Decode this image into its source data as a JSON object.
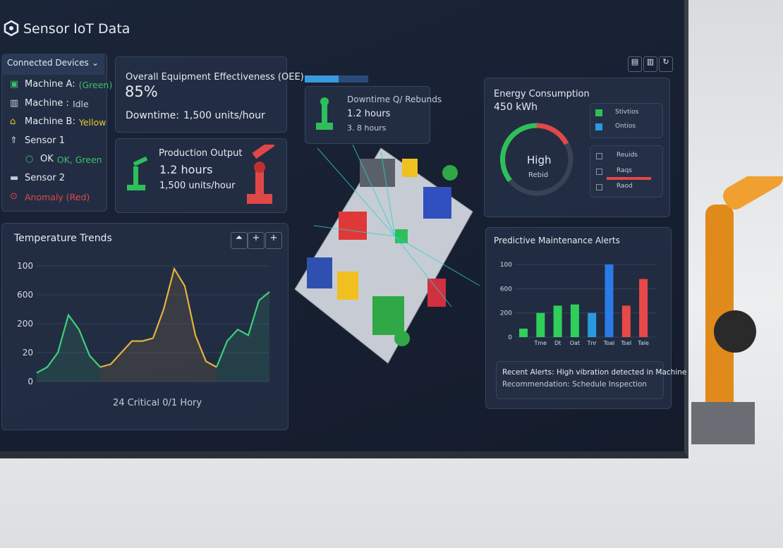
{
  "header": {
    "title": "Sensor IoT Data"
  },
  "devices": {
    "title": "Connected Devices",
    "items": [
      {
        "label": "Machine A:",
        "status": "(Green)",
        "color": "#3fbf6a"
      },
      {
        "label": "Machine :",
        "status": "Idle",
        "color": "#c8d0dc"
      },
      {
        "label": "Machine B:",
        "status": "Yellow",
        "color": "#e8c830"
      },
      {
        "label": "Sensor 1"
      },
      {
        "label": "OK",
        "status": "OK, Green",
        "color": "#3fbf6a"
      },
      {
        "label": "Sensor 2"
      },
      {
        "status": "Anomaly (Red)",
        "color": "#e04848"
      }
    ]
  },
  "oee": {
    "title": "Overall Equipment Effectiveness (OEE)",
    "value": "85%",
    "downtime_label": "Downtime:",
    "downtime_value": "1,500 units/hour"
  },
  "production": {
    "title": "Production Output",
    "hours": "1.2 hours",
    "rate": "1,500 units/hour"
  },
  "downtime": {
    "title": "Downtime Q/ Rebunds",
    "hours": "1.2 hours",
    "alt": "3. 8 hours"
  },
  "energy": {
    "title": "Energy Consumption",
    "value": "450 kWh",
    "gauge_label": "High",
    "gauge_sub": "Rebid",
    "legend": [
      {
        "label": "Stivtios",
        "color": "#2fbf5a"
      },
      {
        "label": "Ontios",
        "color": "#2a9ae0"
      }
    ],
    "list": [
      "Reuids",
      "Raqs",
      "Raod"
    ]
  },
  "temperature": {
    "title": "Temperature Trends",
    "y_labels": [
      "100",
      "600",
      "200",
      "20",
      "0"
    ],
    "ylim": [
      0,
      4
    ],
    "series": [
      {
        "color": "#3fcf7a",
        "values": [
          0.3,
          0.5,
          1.0,
          2.3,
          1.8,
          0.9,
          0.5,
          null,
          null,
          null,
          null,
          null,
          null,
          null,
          null,
          null,
          null,
          0.5,
          1.4,
          1.8,
          1.6,
          2.8,
          3.1
        ]
      },
      {
        "color": "#e8b040",
        "values": [
          null,
          null,
          null,
          null,
          null,
          null,
          0.5,
          0.6,
          1.0,
          1.4,
          1.4,
          1.5,
          2.5,
          3.9,
          3.3,
          1.6,
          0.7,
          0.5,
          null,
          null,
          null,
          null,
          null
        ]
      }
    ],
    "caption": "24 Critical 0/1 Hory"
  },
  "alerts": {
    "title": "Predictive Maintenance Alerts",
    "y_labels": [
      "100",
      "600",
      "200",
      "0"
    ],
    "ylim": [
      0,
      3
    ],
    "categories": [
      null,
      "Tme",
      "Dt",
      "Oat",
      "Tnr",
      "Toal",
      "Tsel",
      "Tale"
    ],
    "values": [
      0.35,
      1.0,
      1.3,
      1.35,
      1.0,
      3.0,
      1.3,
      2.4
    ],
    "colors": [
      "#2fcf5a",
      "#2fcf5a",
      "#2fcf5a",
      "#2fcf5a",
      "#2a9ae0",
      "#2a7ae8",
      "#e84848",
      "#e84848"
    ],
    "recent": "Recent Alerts: High vibration detected in Machine B.",
    "recommendation": "Recommendation: Schedule Inspection"
  }
}
